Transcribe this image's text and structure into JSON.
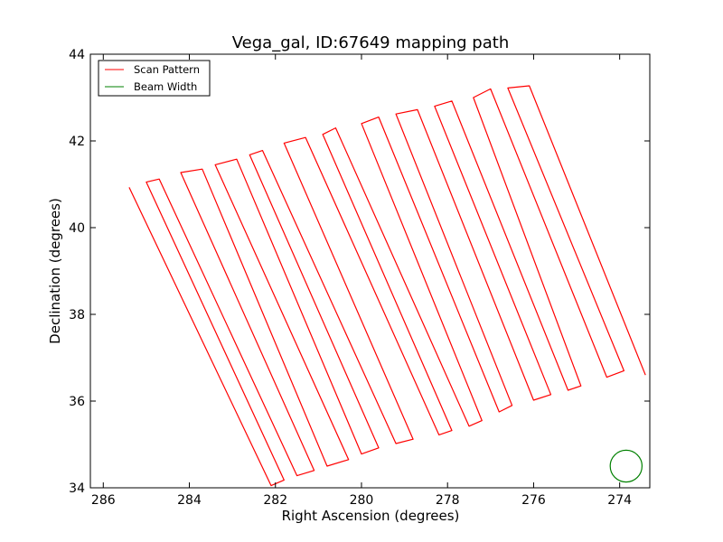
{
  "chart_data": {
    "type": "line",
    "title": "Vega_gal, ID:67649 mapping path",
    "xlabel": "Right Ascension (degrees)",
    "ylabel": "Declination (degrees)",
    "xlim": [
      286.3,
      273.3
    ],
    "ylim": [
      34,
      44
    ],
    "x_ticks": [
      286,
      284,
      282,
      280,
      278,
      276,
      274
    ],
    "y_ticks": [
      34,
      36,
      38,
      40,
      42,
      44
    ],
    "grid": false,
    "legend_position": "top-left",
    "colors": {
      "scan": "#ff0000",
      "beam": "#008000"
    },
    "series": [
      {
        "name": "Scan Pattern",
        "style": "line",
        "scan_legs": [
          {
            "top": [
              285.4,
              40.93
            ],
            "bottom": [
              282.1,
              34.05
            ]
          },
          {
            "top": [
              285.0,
              41.05
            ],
            "bottom": [
              281.8,
              34.18
            ]
          },
          {
            "top": [
              284.7,
              41.12
            ],
            "bottom": [
              281.5,
              34.28
            ]
          },
          {
            "top": [
              284.2,
              41.27
            ],
            "bottom": [
              281.1,
              34.4
            ]
          },
          {
            "top": [
              283.7,
              41.35
            ],
            "bottom": [
              280.8,
              34.5
            ]
          },
          {
            "top": [
              283.4,
              41.45
            ],
            "bottom": [
              280.3,
              34.65
            ]
          },
          {
            "top": [
              282.9,
              41.58
            ],
            "bottom": [
              280.0,
              34.78
            ]
          },
          {
            "top": [
              282.6,
              41.68
            ],
            "bottom": [
              279.6,
              34.92
            ]
          },
          {
            "top": [
              282.3,
              41.78
            ],
            "bottom": [
              279.2,
              35.02
            ]
          },
          {
            "top": [
              281.8,
              41.95
            ],
            "bottom": [
              278.8,
              35.12
            ]
          },
          {
            "top": [
              281.3,
              42.08
            ],
            "bottom": [
              278.2,
              35.22
            ]
          },
          {
            "top": [
              280.9,
              42.15
            ],
            "bottom": [
              277.9,
              35.32
            ]
          },
          {
            "top": [
              280.6,
              42.3
            ],
            "bottom": [
              277.5,
              35.42
            ]
          },
          {
            "top": [
              280.0,
              42.4
            ],
            "bottom": [
              277.2,
              35.55
            ]
          },
          {
            "top": [
              279.6,
              42.55
            ],
            "bottom": [
              276.8,
              35.75
            ]
          },
          {
            "top": [
              279.2,
              42.62
            ],
            "bottom": [
              276.5,
              35.9
            ]
          },
          {
            "top": [
              278.7,
              42.72
            ],
            "bottom": [
              276.0,
              36.02
            ]
          },
          {
            "top": [
              278.3,
              42.8
            ],
            "bottom": [
              275.6,
              36.15
            ]
          },
          {
            "top": [
              277.9,
              42.92
            ],
            "bottom": [
              275.2,
              36.25
            ]
          },
          {
            "top": [
              277.4,
              43.0
            ],
            "bottom": [
              274.9,
              36.35
            ]
          },
          {
            "top": [
              277.0,
              43.2
            ],
            "bottom": [
              274.3,
              36.55
            ]
          },
          {
            "top": [
              276.6,
              43.22
            ],
            "bottom": [
              273.9,
              36.7
            ]
          },
          {
            "top": [
              276.1,
              43.27
            ],
            "bottom": [
              273.4,
              36.6
            ]
          }
        ]
      },
      {
        "name": "Beam Width",
        "style": "circle",
        "center": [
          273.85,
          34.5
        ],
        "radius": 0.37
      }
    ]
  }
}
